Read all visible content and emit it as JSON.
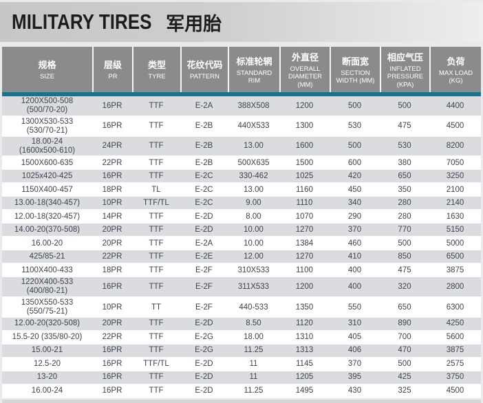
{
  "title": {
    "en": "MILITARY TIRES",
    "zh": "军用胎"
  },
  "colors": {
    "accent_teal": "#17748a",
    "header_bg": "#8a8b8d",
    "row_alt_bg": "#dbdcdf",
    "row_bg": "#ffffff",
    "body_text": "#3d434a",
    "title_text": "#1b1c1e"
  },
  "table": {
    "columns": [
      {
        "id": "size",
        "zh": "规格",
        "en": "SIZE"
      },
      {
        "id": "pr",
        "zh": "层级",
        "en": "PR"
      },
      {
        "id": "tyre",
        "zh": "类型",
        "en": "TYRE"
      },
      {
        "id": "pattern",
        "zh": "花纹代码",
        "en": "PATTERN"
      },
      {
        "id": "standard-rim",
        "zh": "标准轮辋",
        "en": "STANDARD RIM"
      },
      {
        "id": "overall-diameter",
        "zh": "外直径",
        "en": "OVERALL DIAMETER (MM)"
      },
      {
        "id": "section-width",
        "zh": "断面宽",
        "en": "SECTION WIDTH (MM)"
      },
      {
        "id": "inflated-pressure",
        "zh": "相应气压",
        "en": "INFLATED PRESSURE (KPA)"
      },
      {
        "id": "max-load",
        "zh": "负荷",
        "en": "MAX LOAD (KG)"
      }
    ],
    "rows": [
      {
        "size": "1200X500-508",
        "size_sub": "(500/70-20)",
        "pr": "16PR",
        "tyre": "TTF",
        "pattern": "E-2A",
        "rim": "388X508",
        "overall_diameter": "1200",
        "section_width": "500",
        "inflated_pressure": "500",
        "max_load": "4400"
      },
      {
        "size": "1300X530-533",
        "size_sub": "(530/70-21)",
        "pr": "16PR",
        "tyre": "TTF",
        "pattern": "E-2B",
        "rim": "440X533",
        "overall_diameter": "1300",
        "section_width": "530",
        "inflated_pressure": "475",
        "max_load": "4500"
      },
      {
        "size": "18.00-24",
        "size_sub": "(1600x500-610)",
        "pr": "24PR",
        "tyre": "TTF",
        "pattern": "E-2B",
        "rim": "13.00",
        "overall_diameter": "1600",
        "section_width": "500",
        "inflated_pressure": "530",
        "max_load": "8200"
      },
      {
        "size": "1500X600-635",
        "size_sub": "",
        "pr": "22PR",
        "tyre": "TTF",
        "pattern": "E-2B",
        "rim": "500X635",
        "overall_diameter": "1500",
        "section_width": "600",
        "inflated_pressure": "380",
        "max_load": "7050"
      },
      {
        "size": "1025x420-425",
        "size_sub": "",
        "pr": "16PR",
        "tyre": "TTF",
        "pattern": "E-2C",
        "rim": "330-462",
        "overall_diameter": "1025",
        "section_width": "420",
        "inflated_pressure": "650",
        "max_load": "3250"
      },
      {
        "size": "1150X400-457",
        "size_sub": "",
        "pr": "18PR",
        "tyre": "TL",
        "pattern": "E-2C",
        "rim": "13.00",
        "overall_diameter": "1160",
        "section_width": "450",
        "inflated_pressure": "350",
        "max_load": "2100"
      },
      {
        "size": "13.00-18(340-457)",
        "size_sub": "",
        "pr": "10PR",
        "tyre": "TTF/TL",
        "pattern": "E-2C",
        "rim": "9.00",
        "overall_diameter": "1110",
        "section_width": "340",
        "inflated_pressure": "280",
        "max_load": "2140"
      },
      {
        "size": "12.00-18(320-457)",
        "size_sub": "",
        "pr": "14PR",
        "tyre": "TTF",
        "pattern": "E-2D",
        "rim": "8.00",
        "overall_diameter": "1070",
        "section_width": "290",
        "inflated_pressure": "280",
        "max_load": "1630"
      },
      {
        "size": "14.00-20(370-508)",
        "size_sub": "",
        "pr": "20PR",
        "tyre": "TTF",
        "pattern": "E-2D",
        "rim": "10.00",
        "overall_diameter": "1270",
        "section_width": "370",
        "inflated_pressure": "770",
        "max_load": "5150"
      },
      {
        "size": "16.00-20",
        "size_sub": "",
        "pr": "20PR",
        "tyre": "TTF",
        "pattern": "E-2A",
        "rim": "10.00",
        "overall_diameter": "1384",
        "section_width": "460",
        "inflated_pressure": "500",
        "max_load": "5000"
      },
      {
        "size": "425/85-21",
        "size_sub": "",
        "pr": "22PR",
        "tyre": "TTF",
        "pattern": "E-2E",
        "rim": "12.00",
        "overall_diameter": "1270",
        "section_width": "410",
        "inflated_pressure": "850",
        "max_load": "6500"
      },
      {
        "size": "1100X400-433",
        "size_sub": "",
        "pr": "18PR",
        "tyre": "TTF",
        "pattern": "E-2F",
        "rim": "310X533",
        "overall_diameter": "1100",
        "section_width": "400",
        "inflated_pressure": "475",
        "max_load": "3875"
      },
      {
        "size": "1220X400-533",
        "size_sub": "(400/80-21)",
        "pr": "16PR",
        "tyre": "TTF",
        "pattern": "E-2F",
        "rim": "311X533",
        "overall_diameter": "1200",
        "section_width": "400",
        "inflated_pressure": "320",
        "max_load": "2800"
      },
      {
        "size": "1350X550-533",
        "size_sub": "(550/75-21)",
        "pr": "10PR",
        "tyre": "TT",
        "pattern": "E-2F",
        "rim": "440-533",
        "overall_diameter": "1350",
        "section_width": "550",
        "inflated_pressure": "650",
        "max_load": "6300"
      },
      {
        "size": "12.00-20(320-508)",
        "size_sub": "",
        "pr": "20PR",
        "tyre": "TTF",
        "pattern": "E-2D",
        "rim": "8.50",
        "overall_diameter": "1120",
        "section_width": "310",
        "inflated_pressure": "890",
        "max_load": "4250"
      },
      {
        "size": "15.5-20 (335/80-20)",
        "size_sub": "",
        "pr": "22PR",
        "tyre": "TTF",
        "pattern": "E-2G",
        "rim": "18.00",
        "overall_diameter": "1310",
        "section_width": "405",
        "inflated_pressure": "700",
        "max_load": "5600"
      },
      {
        "size": "15.00-21",
        "size_sub": "",
        "pr": "16PR",
        "tyre": "TTF",
        "pattern": "E-2G",
        "rim": "11.25",
        "overall_diameter": "1313",
        "section_width": "406",
        "inflated_pressure": "470",
        "max_load": "3875"
      },
      {
        "size": "12.5-20",
        "size_sub": "",
        "pr": "16PR",
        "tyre": "TTF/TL",
        "pattern": "E-2D",
        "rim": "11",
        "overall_diameter": "1145",
        "section_width": "370",
        "inflated_pressure": "500",
        "max_load": "2575"
      },
      {
        "size": "13-20",
        "size_sub": "",
        "pr": "16PR",
        "tyre": "TTF",
        "pattern": "E-2D",
        "rim": "11",
        "overall_diameter": "1205",
        "section_width": "395",
        "inflated_pressure": "425",
        "max_load": "3750"
      },
      {
        "size": "16.00-24",
        "size_sub": "",
        "pr": "16PR",
        "tyre": "TTF",
        "pattern": "E-2D",
        "rim": "11.25",
        "overall_diameter": "1495",
        "section_width": "430",
        "inflated_pressure": "325",
        "max_load": "4500"
      }
    ]
  }
}
